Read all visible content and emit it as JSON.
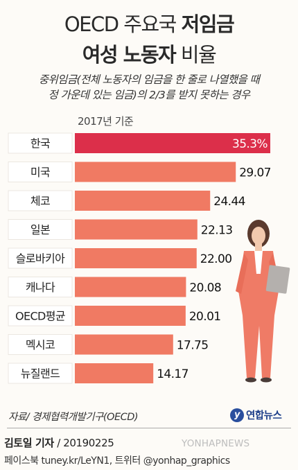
{
  "header": {
    "title_line1_plain": "OECD 주요국",
    "title_line1_bold": "저임금",
    "title_line2_bold": "여성 노동자",
    "title_line2_plain": "비율",
    "subtitle_line1": "중위임금(전체 노동자의 임금을 한 줄로 나열했을 때",
    "subtitle_line2": "정 가운데 있는 임금)의 2/3를 받지 못하는 경우",
    "base_year": "2017년 기준"
  },
  "chart_data": {
    "type": "bar",
    "orientation": "horizontal",
    "categories": [
      "한국",
      "미국",
      "체코",
      "일본",
      "슬로바키아",
      "캐나다",
      "OECD평균",
      "멕시코",
      "뉴질랜드"
    ],
    "values": [
      35.3,
      29.07,
      24.44,
      22.13,
      22.0,
      20.08,
      20.01,
      17.75,
      14.17
    ],
    "value_labels": [
      "35.3%",
      "29.07",
      "24.44",
      "22.13",
      "22.00",
      "20.08",
      "20.01",
      "17.75",
      "14.17"
    ],
    "highlight_index": 0,
    "grid": false,
    "legend": "none"
  },
  "colors": {
    "highlight_bar": "#dc2f4a",
    "bar": "#f07a63",
    "label_box": "#ffffff"
  },
  "footer": {
    "source": "자료/ 경제협력개발기구(OECD)",
    "logo_text": "연합뉴스",
    "author_name": "김토일 기자",
    "author_date": " / 20190225",
    "social": "페이스북 tuney.kr/LeYN1, 트위터 @yonhap_graphics",
    "watermark": "YONHAPNEWS"
  },
  "icons": {
    "logo": "yonhap-logo-icon",
    "illustration": "woman-holding-folder-icon"
  }
}
